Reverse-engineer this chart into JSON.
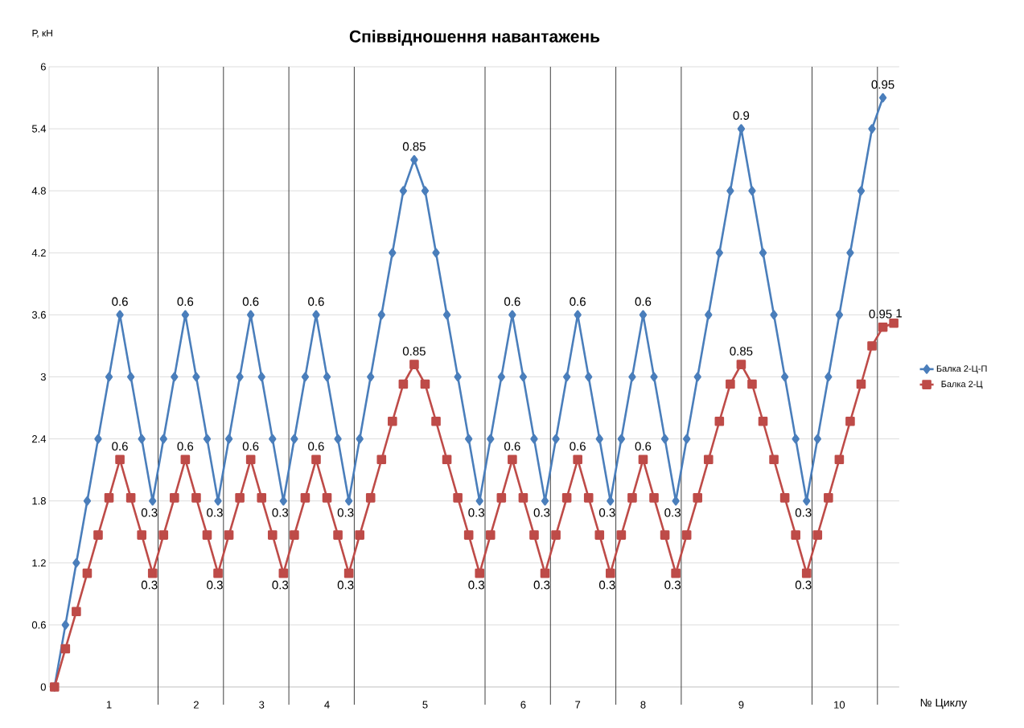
{
  "chart_data": {
    "type": "line",
    "title": "Співвідношення навантажень",
    "ylabel": "Р, кН",
    "xlabel": "№ Циклу",
    "categories": [
      null,
      null,
      null,
      null,
      null,
      "1",
      null,
      null,
      null,
      null,
      null,
      null,
      null,
      "2",
      null,
      null,
      null,
      null,
      null,
      "3",
      null,
      null,
      null,
      null,
      null,
      "4",
      null,
      null,
      null,
      null,
      null,
      null,
      null,
      null,
      "5",
      null,
      null,
      null,
      null,
      null,
      null,
      null,
      null,
      "6",
      null,
      null,
      null,
      null,
      "7",
      null,
      null,
      null,
      null,
      null,
      "8",
      null,
      null,
      null,
      null,
      null,
      null,
      null,
      null,
      "9",
      null,
      null,
      null,
      null,
      null,
      null,
      null,
      null,
      "10",
      null,
      null,
      null,
      null,
      null
    ],
    "series": [
      {
        "name": "Балка 2-Ц-П",
        "color": "#4a7ebb",
        "marker": "diamond",
        "values": [
          0,
          0.6,
          1.2,
          1.8,
          2.4,
          3.0,
          3.6,
          3.0,
          2.4,
          1.8,
          2.4,
          3.0,
          3.6,
          3.0,
          2.4,
          1.8,
          2.4,
          3.0,
          3.6,
          3.0,
          2.4,
          1.8,
          2.4,
          3.0,
          3.6,
          3.0,
          2.4,
          1.8,
          2.4,
          3.0,
          3.6,
          4.2,
          4.8,
          5.1,
          4.8,
          4.2,
          3.6,
          3.0,
          2.4,
          1.8,
          2.4,
          3.0,
          3.6,
          3.0,
          2.4,
          1.8,
          2.4,
          3.0,
          3.6,
          3.0,
          2.4,
          1.8,
          2.4,
          3.0,
          3.6,
          3.0,
          2.4,
          1.8,
          2.4,
          3.0,
          3.6,
          4.2,
          4.8,
          5.4,
          4.8,
          4.2,
          3.6,
          3.0,
          2.4,
          1.8,
          2.4,
          3.0,
          3.6,
          4.2,
          4.8,
          5.4,
          5.7,
          null
        ]
      },
      {
        "name": "Балка 2-Ц",
        "color": "#be4b48",
        "marker": "square",
        "values": [
          0,
          0.37,
          0.73,
          1.1,
          1.47,
          1.83,
          2.2,
          1.83,
          1.47,
          1.1,
          1.47,
          1.83,
          2.2,
          1.83,
          1.47,
          1.1,
          1.47,
          1.83,
          2.2,
          1.83,
          1.47,
          1.1,
          1.47,
          1.83,
          2.2,
          1.83,
          1.47,
          1.1,
          1.47,
          1.83,
          2.2,
          2.57,
          2.93,
          3.12,
          2.93,
          2.57,
          2.2,
          1.83,
          1.47,
          1.1,
          1.47,
          1.83,
          2.2,
          1.83,
          1.47,
          1.1,
          1.47,
          1.83,
          2.2,
          1.83,
          1.47,
          1.1,
          1.47,
          1.83,
          2.2,
          1.83,
          1.47,
          1.1,
          1.47,
          1.83,
          2.2,
          2.57,
          2.93,
          3.12,
          2.93,
          2.57,
          2.2,
          1.83,
          1.47,
          1.1,
          1.47,
          1.83,
          2.2,
          2.57,
          2.93,
          3.3,
          3.48,
          3.52
        ]
      }
    ],
    "annotations": [
      {
        "text": "0.6",
        "y": 3.6
      },
      {
        "text": "0.3",
        "y": 1.8
      },
      {
        "text": "0.6",
        "y": 3.6
      },
      {
        "text": "0.3",
        "y": 1.8
      },
      {
        "text": "0.6",
        "y": 3.6
      },
      {
        "text": "0.3",
        "y": 1.8
      },
      {
        "text": "0.6",
        "y": 3.6
      },
      {
        "text": "0.3",
        "y": 1.8
      },
      {
        "text": "0.85",
        "y": 5.1
      },
      {
        "text": "0.3",
        "y": 1.8
      },
      {
        "text": "0.6",
        "y": 3.6
      },
      {
        "text": "0.3",
        "y": 1.8
      },
      {
        "text": "0.6",
        "y": 3.6
      },
      {
        "text": "0.3",
        "y": 1.8
      },
      {
        "text": "0.6",
        "y": 3.6
      },
      {
        "text": "0.3",
        "y": 1.8
      },
      {
        "text": "0.9",
        "y": 5.4
      },
      {
        "text": "0.3",
        "y": 1.8
      },
      {
        "text": "0.95",
        "y": 5.7
      },
      {
        "text": "0.6",
        "y": 2.2
      },
      {
        "text": "0.3",
        "y": 1.1
      },
      {
        "text": "0.6",
        "y": 2.2
      },
      {
        "text": "0.3",
        "y": 1.1
      },
      {
        "text": "0.6",
        "y": 2.2
      },
      {
        "text": "0.3",
        "y": 1.1
      },
      {
        "text": "0.6",
        "y": 2.2
      },
      {
        "text": "0.3",
        "y": 1.1
      },
      {
        "text": "0.85",
        "y": 3.12
      },
      {
        "text": "0.3",
        "y": 1.1
      },
      {
        "text": "0.6",
        "y": 2.2
      },
      {
        "text": "0.3",
        "y": 1.1
      },
      {
        "text": "0.6",
        "y": 2.2
      },
      {
        "text": "0.3",
        "y": 1.1
      },
      {
        "text": "0.6",
        "y": 2.2
      },
      {
        "text": "0.3",
        "y": 1.1
      },
      {
        "text": "0.85",
        "y": 3.12
      },
      {
        "text": "0.3",
        "y": 1.1
      },
      {
        "text": "0.95",
        "y": 3.48
      },
      {
        "text": "1",
        "y": 3.52
      }
    ],
    "ylim": [
      0,
      6
    ],
    "yticks": [
      0,
      0.6,
      1.2,
      1.8,
      2.4,
      3,
      3.6,
      4.2,
      4.8,
      5.4,
      6
    ],
    "grid": "y",
    "legend": "right",
    "line_style": "solid"
  }
}
